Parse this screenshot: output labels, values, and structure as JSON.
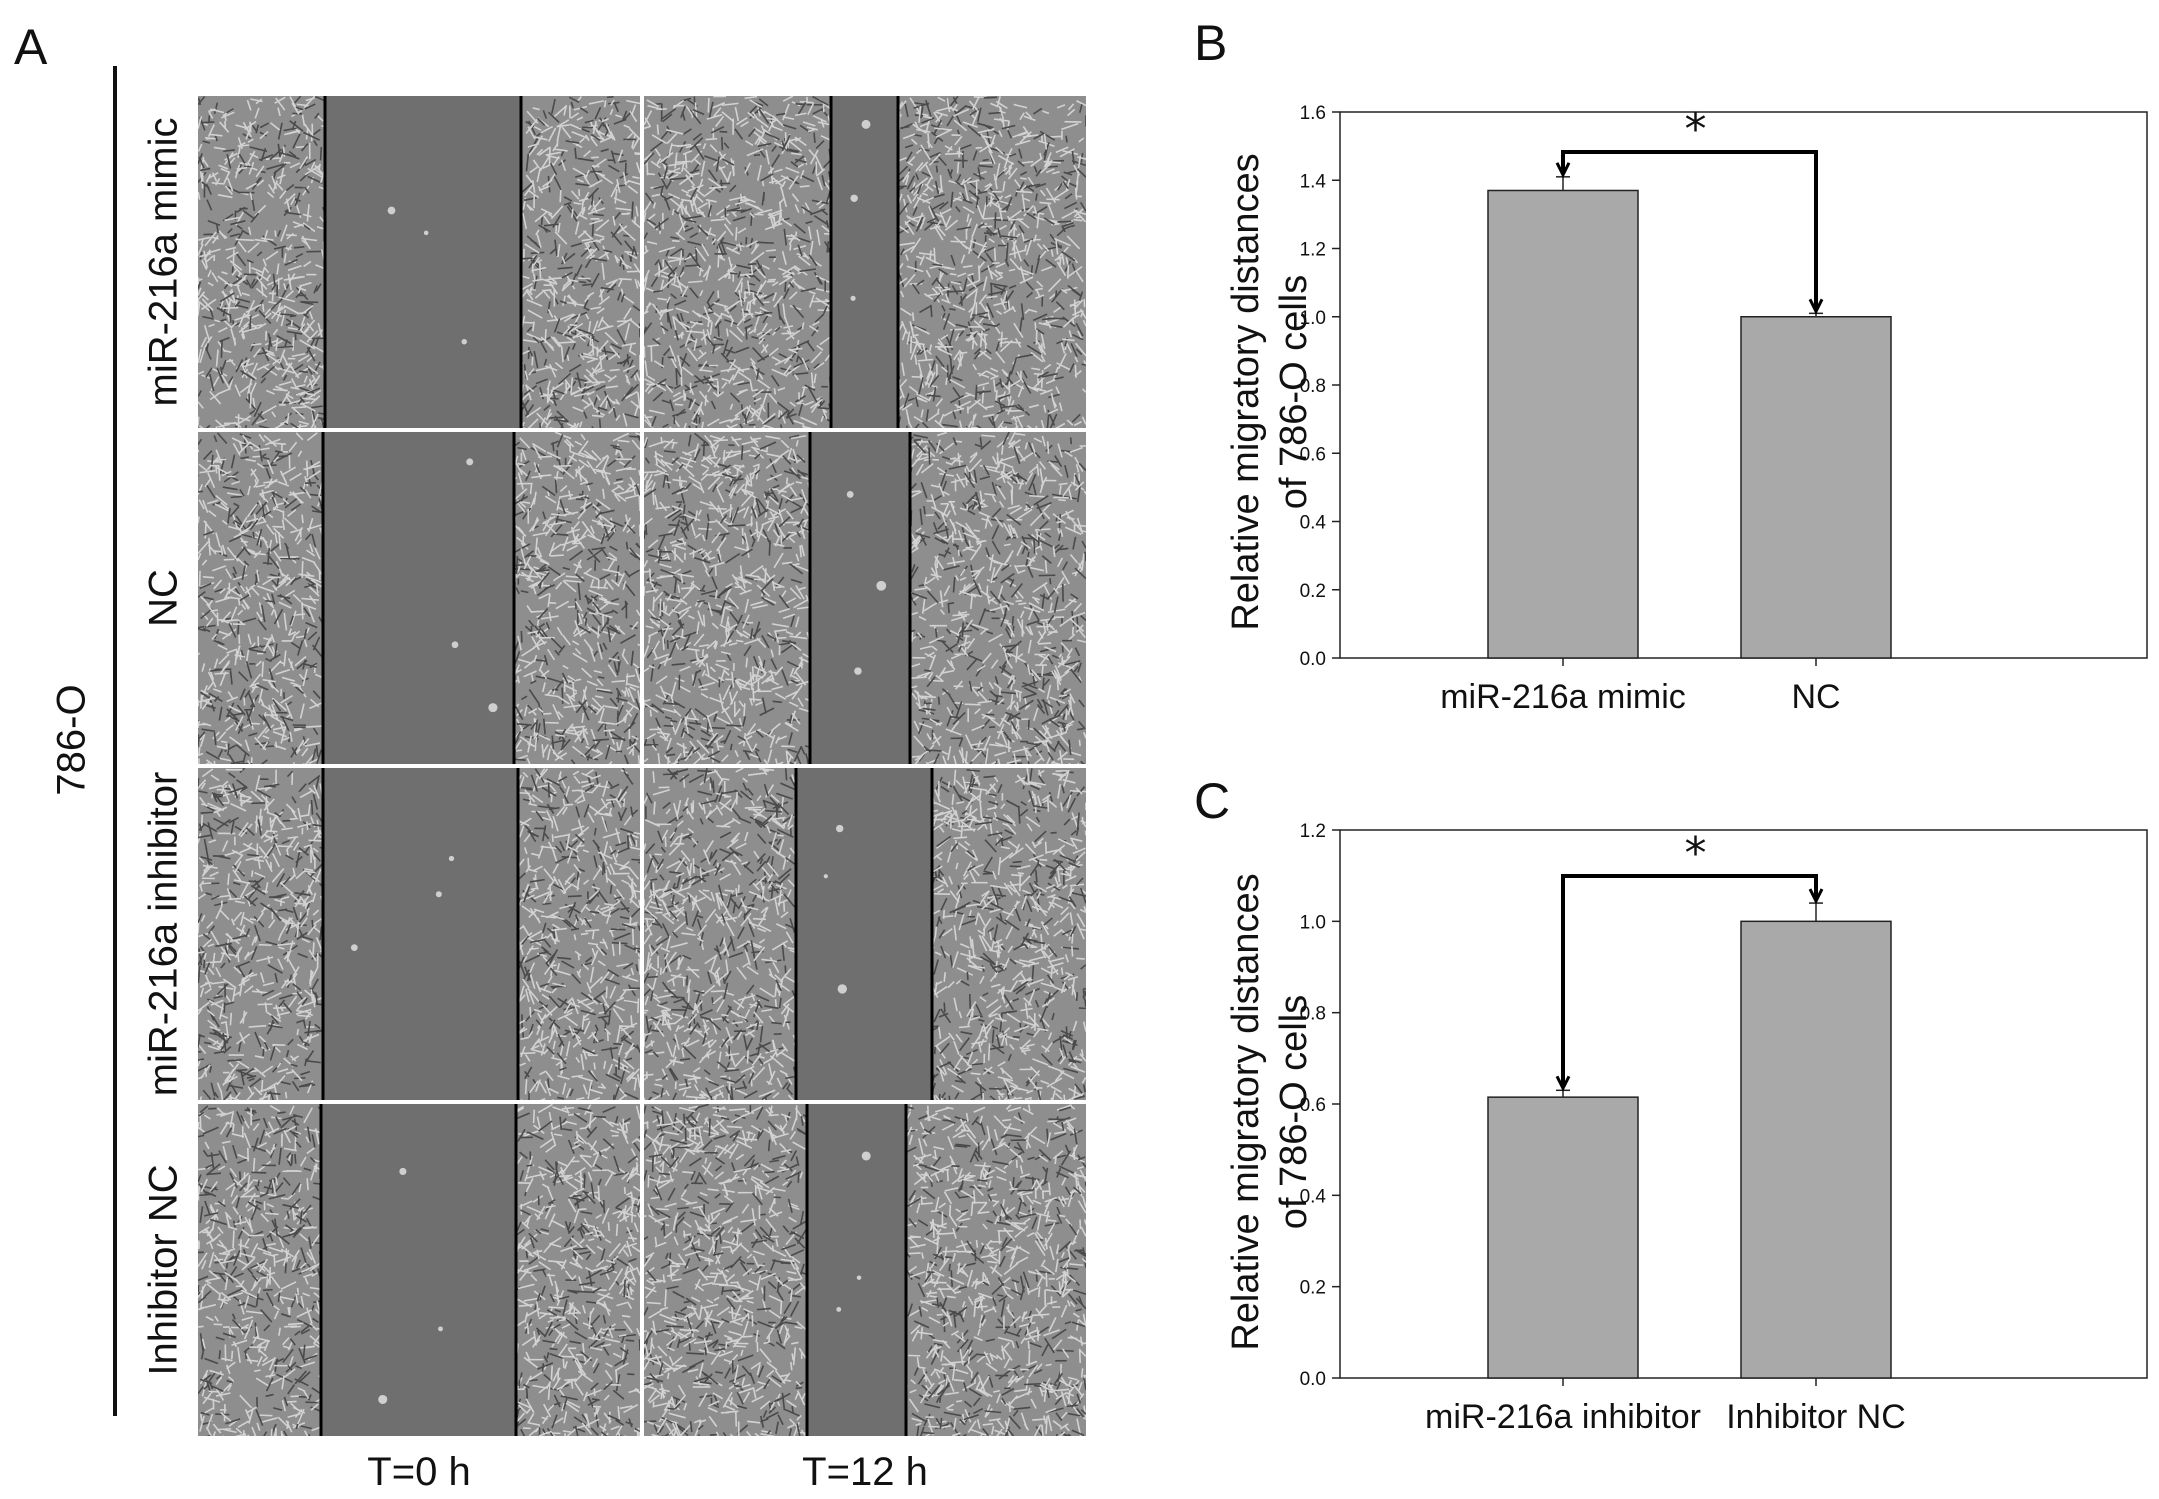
{
  "panelA": {
    "letter": "A",
    "cell_line": "786-O",
    "rows": [
      "miR-216a mimic",
      "NC",
      "miR-216a inhibitor",
      "Inhibitor NC"
    ],
    "columns": [
      "T=0 h",
      "T=12 h"
    ],
    "cell_texture": "#d2d2d2",
    "gap_color": "#6f6f6f"
  },
  "chart_data": [
    {
      "type": "bar",
      "panel": "B",
      "categories": [
        "miR-216a mimic",
        "NC"
      ],
      "values": [
        1.37,
        1.0
      ],
      "errors": [
        0.04,
        0.01
      ],
      "ylabel": "Relative migratory distances of 786-O cells",
      "ylabel_lines": [
        "Relative migratory distances",
        "of 786-O cells"
      ],
      "ylim": [
        0.0,
        1.6
      ],
      "yticks": [
        "0.0",
        "0.2",
        "0.4",
        "0.6",
        "0.8",
        "1.0",
        "1.2",
        "1.4",
        "1.6"
      ],
      "significance": "*",
      "bar_color": "#a9a9a9",
      "grid": false
    },
    {
      "type": "bar",
      "panel": "C",
      "categories": [
        "miR-216a inhibitor",
        "Inhibitor NC"
      ],
      "values": [
        0.615,
        1.0
      ],
      "errors": [
        0.015,
        0.04
      ],
      "ylabel": "Relative migratory distances of 786-O cells",
      "ylabel_lines": [
        "Relative migratory distances",
        "of 786-O cells"
      ],
      "ylim": [
        0.0,
        1.2
      ],
      "yticks": [
        "0.0",
        "0.2",
        "0.4",
        "0.6",
        "0.8",
        "1.0",
        "1.2"
      ],
      "significance": "*",
      "bar_color": "#a9a9a9",
      "grid": false
    }
  ]
}
